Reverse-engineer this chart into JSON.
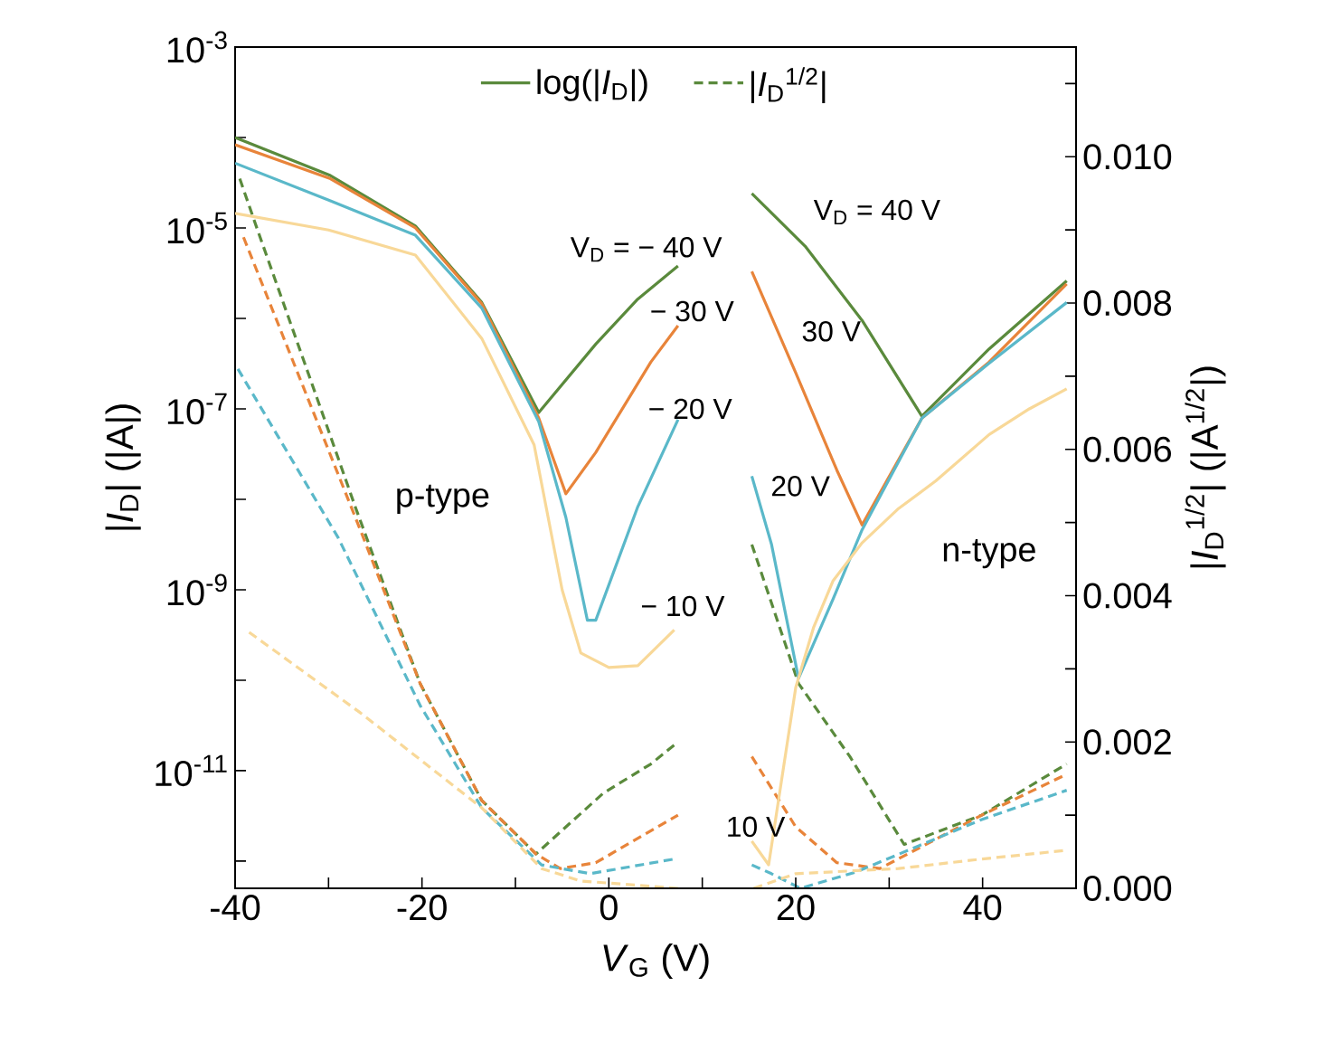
{
  "chart_data": {
    "type": "line",
    "xlabel": "*V*$_{G}$ (V)",
    "ylabel": "|*I*$_{D}$| (|A|)",
    "y2label": "|*I*$_{D}$$^{1/2}$| (|A$^{1/2}$|)",
    "log": "y",
    "legend": "top",
    "xlim": [
      -40,
      50
    ],
    "xticks": [
      -40,
      {
        "value": -30,
        "label": null
      },
      -20,
      {
        "value": -10,
        "label": null
      },
      0,
      {
        "value": 10,
        "label": null
      },
      20,
      {
        "value": 30,
        "label": null
      },
      40
    ],
    "ylim": [
      5e-13,
      0.001
    ],
    "yticks": [
      {
        "value": 0.001,
        "label": "10$^{-3}$"
      },
      {
        "value": 0.0001,
        "label": null
      },
      {
        "value": 1e-05,
        "label": "10$^{-5}$"
      },
      {
        "value": 1e-06,
        "label": null
      },
      {
        "value": 1e-07,
        "label": "10$^{-7}$"
      },
      {
        "value": 1e-08,
        "label": null
      },
      {
        "value": 1e-09,
        "label": "10$^{-9}$"
      },
      {
        "value": 1e-10,
        "label": null
      },
      {
        "value": 1e-11,
        "label": "10$^{-11}$"
      },
      {
        "value": 1e-12,
        "label": null
      }
    ],
    "y2lim": [
      0,
      0.0115
    ],
    "y2ticks": [
      {
        "value": 0,
        "label": "0.000"
      },
      {
        "value": 0.001,
        "label": null
      },
      {
        "value": 0.002,
        "label": "0.002"
      },
      {
        "value": 0.003,
        "label": null
      },
      {
        "value": 0.004,
        "label": "0.004"
      },
      {
        "value": 0.005,
        "label": null
      },
      {
        "value": 0.006,
        "label": "0.006"
      },
      {
        "value": 0.007,
        "label": null
      },
      {
        "value": 0.008,
        "label": "0.008"
      },
      {
        "value": 0.009,
        "label": null
      },
      {
        "value": 0.01,
        "label": "0.010"
      },
      {
        "value": 0.011,
        "label": null
      }
    ],
    "series": [
      {
        "name": "log(|*I*$_{D}$|)",
        "color": "#5a8a3c",
        "line_style": "solid",
        "x": [
          -40,
          -29.8,
          -20.7,
          -13.6,
          -7.5,
          -1.4,
          3,
          7.4
        ],
        "values": [
          0.0001,
          3.8e-05,
          1.05e-05,
          1.5e-06,
          9.1e-08,
          5.2e-07,
          1.6e-06,
          3.8e-06
        ]
      },
      {
        "color": "#e8843a",
        "line_style": "solid",
        "x": [
          -40,
          -29.8,
          -20.7,
          -13.6,
          -7.5,
          -4.6,
          -1.4,
          4.5,
          7.4
        ],
        "values": [
          8.3e-05,
          3.5e-05,
          1e-05,
          1.45e-06,
          7.9e-08,
          1.15e-08,
          3.3e-08,
          3.3e-07,
          8.3e-07
        ]
      },
      {
        "color": "#5ab8c9",
        "line_style": "solid",
        "x": [
          -40,
          -29.8,
          -20.7,
          -13.6,
          -7.5,
          -4.6,
          -2.3,
          -1.4,
          3.1,
          7.4
        ],
        "values": [
          5.2e-05,
          2e-05,
          8.3e-06,
          1.3e-06,
          7.2e-08,
          6.3e-09,
          4.6e-10,
          4.6e-10,
          8.3e-09,
          7.6e-08
        ]
      },
      {
        "color": "#f8d898",
        "line_style": "solid",
        "x": [
          -40,
          -30,
          -20.7,
          -13.6,
          -8,
          -5,
          -3,
          0,
          3.1,
          7
        ],
        "values": [
          1.45e-05,
          9.5e-06,
          5e-06,
          6e-07,
          4e-08,
          1e-09,
          2e-10,
          1.38e-10,
          1.45e-10,
          3.6e-10
        ]
      },
      {
        "color": "#5a8a3c",
        "line_style": "solid",
        "x": [
          15.3,
          21,
          27.1,
          33.5,
          40.7,
          49
        ],
        "values": [
          2.4e-05,
          6.3e-06,
          9.5e-07,
          8.3e-08,
          4.6e-07,
          2.6e-06
        ]
      },
      {
        "color": "#e8843a",
        "line_style": "solid",
        "x": [
          15.3,
          20,
          24.4,
          27.1,
          33.5,
          40.7,
          49
        ],
        "values": [
          3.3e-06,
          2.5e-07,
          2.1e-08,
          5.2e-09,
          7.9e-08,
          3.3e-07,
          2.4e-06
        ]
      },
      {
        "color": "#5ab8c9",
        "line_style": "solid",
        "x": [
          15.3,
          17.4,
          20.3,
          24,
          27.1,
          33.5,
          40.7,
          49
        ],
        "values": [
          1.8e-08,
          3.2e-09,
          1.05e-10,
          7.9e-10,
          4.6e-09,
          7.9e-08,
          3.2e-07,
          1.5e-06
        ]
      },
      {
        "color": "#f8d898",
        "line_style": "solid",
        "x": [
          15.3,
          17.1,
          20,
          21.9,
          24,
          27.1,
          31,
          35,
          40.7,
          45,
          49
        ],
        "values": [
          1.66e-12,
          9.1e-13,
          8.3e-11,
          3.8e-10,
          1.26e-09,
          3.3e-09,
          7.9e-09,
          1.6e-08,
          5.2e-08,
          1e-07,
          1.66e-07
        ]
      },
      {
        "name": "|*I*$_{D}$$^{1/2}$|",
        "color": "#5a8a3c",
        "line_style": "dashed",
        "axis": "y2",
        "x": [
          -39.5,
          -37.6,
          -30.4,
          -27.1,
          -20.2,
          -13.6,
          -7.8,
          -0.6,
          4.5,
          7.4
        ],
        "values": [
          0.0097,
          0.009,
          0.0064,
          0.0052,
          0.0028,
          0.0012,
          0.00047,
          0.0013,
          0.0017,
          0.002
        ]
      },
      {
        "color": "#e8843a",
        "line_style": "dashed",
        "axis": "y2",
        "x": [
          -39.1,
          -26.6,
          -20.2,
          -13.6,
          -7.8,
          -5.2,
          -1.4,
          7.4
        ],
        "values": [
          0.0089,
          0.0049,
          0.0028,
          0.0012,
          0.00047,
          0.00027,
          0.00035,
          0.001
        ]
      },
      {
        "color": "#5ab8c9",
        "line_style": "dashed",
        "axis": "y2",
        "x": [
          -39.7,
          -29,
          -20.2,
          -13.6,
          -7.2,
          -2,
          7
        ],
        "values": [
          0.0071,
          0.0048,
          0.0025,
          0.0011,
          0.00032,
          0.0002,
          0.0004
        ]
      },
      {
        "color": "#f8d898",
        "line_style": "dashed",
        "axis": "y2",
        "x": [
          -38.5,
          -26.6,
          -13.6,
          -7.2,
          -3,
          7.4
        ],
        "values": [
          0.0035,
          0.0024,
          0.0011,
          0.00027,
          0.0001,
          0
        ]
      },
      {
        "color": "#5a8a3c",
        "line_style": "dashed",
        "axis": "y2",
        "x": [
          15.3,
          20.3,
          25.8,
          31.6,
          39.9,
          49
        ],
        "values": [
          0.0047,
          0.0028,
          0.0018,
          0.0006,
          0.001,
          0.0017
        ]
      },
      {
        "color": "#e8843a",
        "line_style": "dashed",
        "axis": "y2",
        "x": [
          15.3,
          20,
          24.4,
          29,
          39.9,
          49
        ],
        "values": [
          0.0018,
          0.00084,
          0.00035,
          0.00027,
          0.001,
          0.00156
        ]
      },
      {
        "color": "#5ab8c9",
        "line_style": "dashed",
        "axis": "y2",
        "x": [
          15.3,
          17.4,
          20.5,
          26.4,
          39.9,
          49
        ],
        "values": [
          0.00032,
          0.0002,
          0,
          0.00022,
          0.00094,
          0.00134
        ]
      },
      {
        "color": "#f8d898",
        "line_style": "dashed",
        "axis": "y2",
        "x": [
          15.5,
          20,
          31,
          39.9,
          49
        ],
        "values": [
          0,
          0.0002,
          0.00027,
          0.0004,
          0.00052
        ]
      }
    ],
    "annotations": [
      "V$_{D}$ = − 40 V",
      "− 30 V",
      "− 20 V",
      "− 10 V",
      "V$_{D}$ = 40 V",
      "30 V",
      "20 V",
      "10 V",
      "p-type",
      "n-type"
    ]
  }
}
